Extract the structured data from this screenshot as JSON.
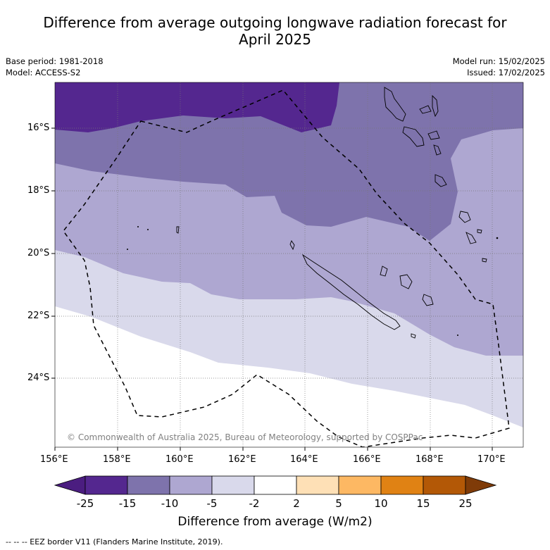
{
  "title_line1": "Difference from average outgoing longwave radiation forecast for",
  "title_line2": "April 2025",
  "info_left": [
    "Base period: 1981-2018",
    "Model: ACCESS-S2"
  ],
  "info_right": [
    "Model run: 15/02/2025",
    "Issued: 17/02/2025"
  ],
  "copyright": "© Commonwealth of Australia 2025, Bureau of Meteorology, supported by COSPPac",
  "lon_labels": [
    "156°E",
    "158°E",
    "160°E",
    "162°E",
    "164°E",
    "166°E",
    "168°E",
    "170°E"
  ],
  "lat_labels": [
    "16°S",
    "18°S",
    "20°S",
    "22°S",
    "24°S"
  ],
  "colorbar": {
    "ticks": [
      "-25",
      "-15",
      "-10",
      "-5",
      "-2",
      "2",
      "5",
      "10",
      "15",
      "25"
    ],
    "colors": [
      "#4b1d80",
      "#54278f",
      "#7e73ac",
      "#aea7d1",
      "#d9d9eb",
      "#ffffff",
      "#fee0b6",
      "#fdb863",
      "#e08214",
      "#b35806",
      "#7f3b08"
    ],
    "title": "Difference from average (W/m2)"
  },
  "footnote": "--  --  -- EEZ border V11 (Flanders Marine Institute, 2019).",
  "map_colors": {
    "dark": "#54278f",
    "mid": "#7e73ac",
    "light": "#aea7d1",
    "pale": "#d9d9eb",
    "white": "#ffffff"
  }
}
